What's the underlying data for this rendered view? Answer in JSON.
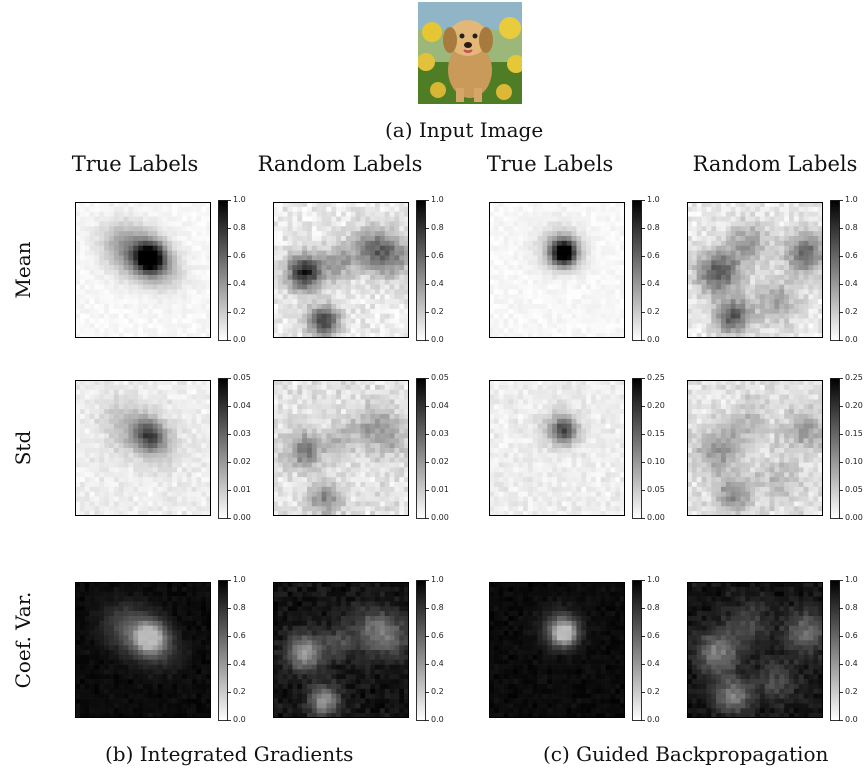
{
  "figure": {
    "input_caption": "(a) Input Image",
    "column_headers": [
      "True Labels",
      "Random Labels",
      "True Labels",
      "Random Labels"
    ],
    "row_headers": [
      "Mean",
      "Std",
      "Coef. Var."
    ],
    "panel_captions": {
      "integrated_gradients": "(b) Integrated Gradients",
      "guided_backprop": "(c) Guided Backpropagation"
    }
  },
  "colorbars": {
    "mean": [
      "1.0",
      "0.8",
      "0.6",
      "0.4",
      "0.2",
      "0.0"
    ],
    "std_ig": [
      "0.05",
      "0.04",
      "0.03",
      "0.02",
      "0.01",
      "0.00"
    ],
    "std_gb": [
      "0.25",
      "0.20",
      "0.15",
      "0.10",
      "0.05",
      "0.00"
    ],
    "coef": [
      "1.0",
      "0.8",
      "0.6",
      "0.4",
      "0.2",
      "0.0"
    ]
  },
  "colors": {
    "sky": "#7fb0c8",
    "dog": "#d9a866",
    "grass": "#5c8a2c",
    "flower": "#e8c83a"
  }
}
